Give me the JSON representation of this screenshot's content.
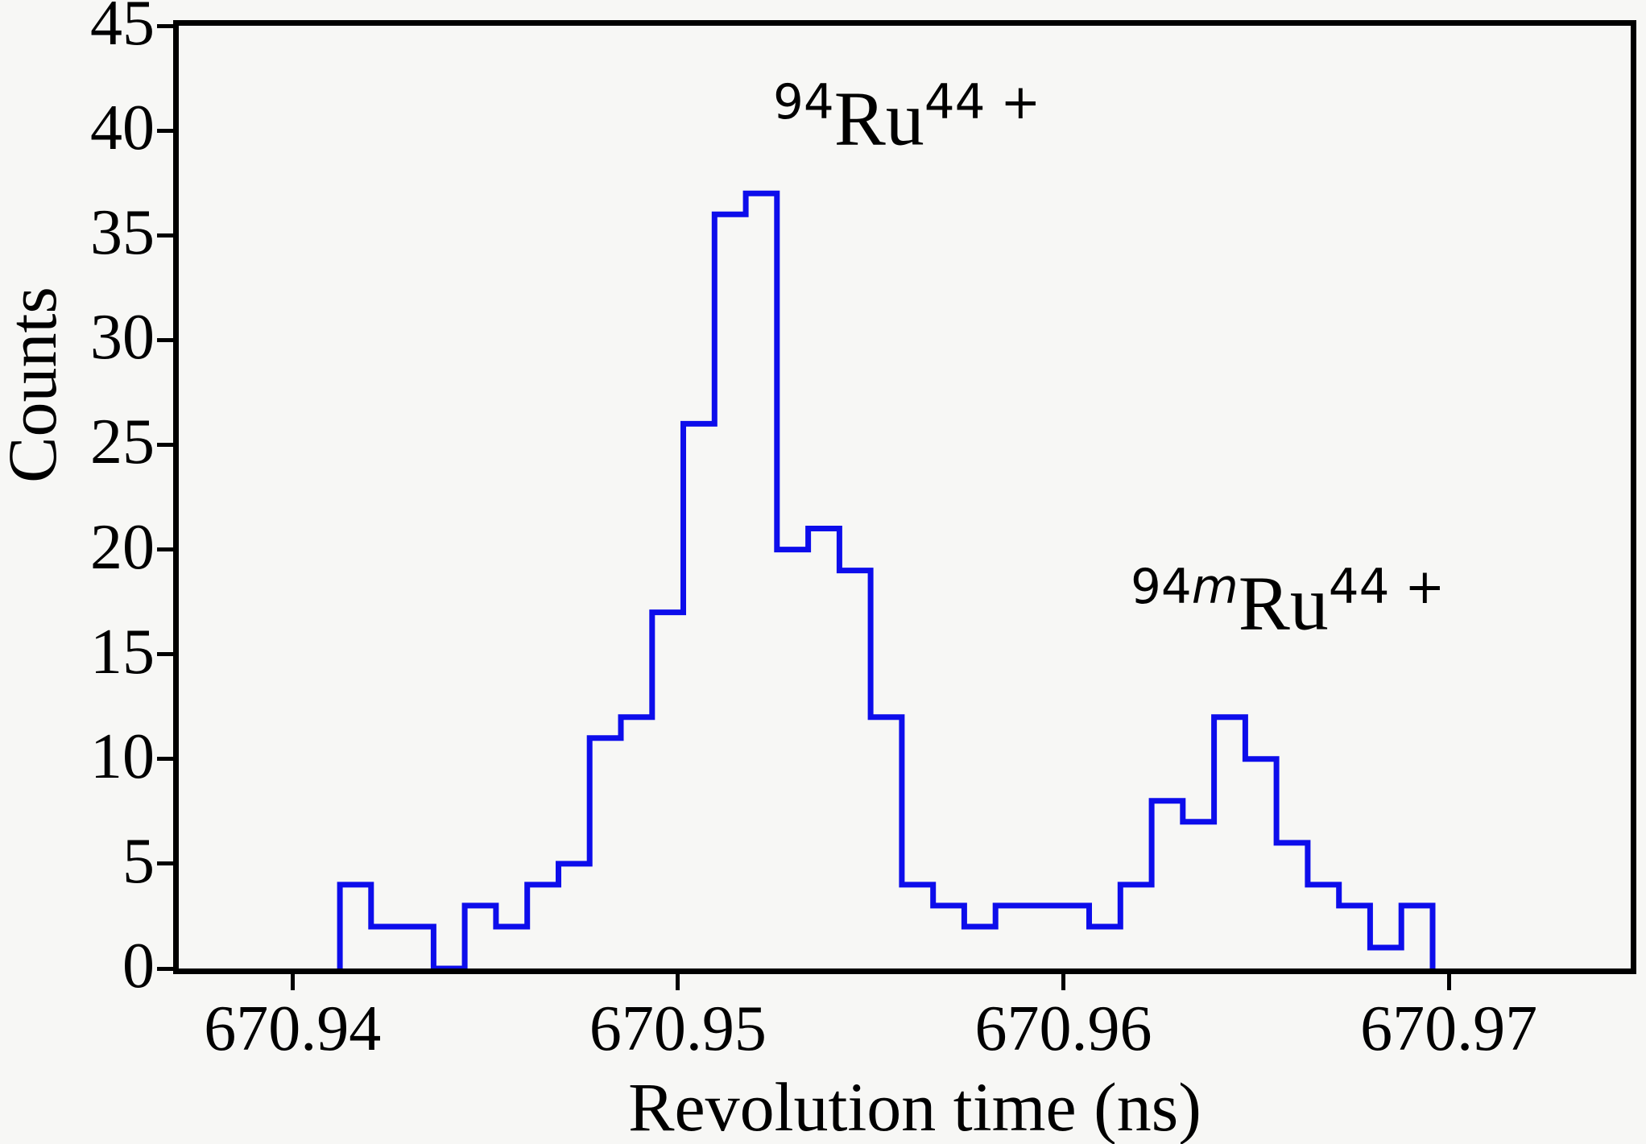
{
  "figure": {
    "background_color": "#f7f7f5",
    "axis_color": "#000000",
    "line_color": "#0d0deb"
  },
  "axes": {
    "x": {
      "label": "Revolution time (ns)",
      "tick_labels": [
        "670.94",
        "670.95",
        "670.96",
        "670.97"
      ],
      "tick_values": [
        670.94,
        670.95,
        670.96,
        670.97
      ],
      "range": [
        670.93705,
        670.97472
      ]
    },
    "y": {
      "label": "Counts",
      "tick_labels": [
        "0",
        "5",
        "10",
        "15",
        "20",
        "25",
        "30",
        "35",
        "40",
        "45"
      ],
      "tick_values": [
        0,
        5,
        10,
        15,
        20,
        25,
        30,
        35,
        40,
        45
      ],
      "range": [
        0,
        45
      ]
    }
  },
  "annotations": [
    {
      "mass": "94",
      "isomer": "",
      "element": "Ru",
      "charge": "44 +"
    },
    {
      "mass": "94",
      "isomer": "m",
      "element": "Ru",
      "charge": "44 +"
    }
  ],
  "chart_data": {
    "type": "line",
    "subtype": "step-histogram",
    "title": "",
    "xlabel": "Revolution time (ns)",
    "ylabel": "Counts",
    "xlim": [
      670.93705,
      670.97472
    ],
    "ylim": [
      0,
      45
    ],
    "grid": false,
    "legend": "none",
    "bin_start": 670.94123,
    "bin_width": 0.00081,
    "counts": [
      4,
      2,
      2,
      0,
      3,
      2,
      4,
      5,
      11,
      12,
      17,
      26,
      36,
      37,
      20,
      21,
      19,
      12,
      4,
      3,
      2,
      3,
      3,
      3,
      2,
      4,
      8,
      7,
      12,
      10,
      6,
      4,
      3,
      1,
      3
    ],
    "peak_annotations": [
      {
        "text": "94Ru44+",
        "peak_bin_count": 37,
        "near_time": 670.9518
      },
      {
        "text": "94mRu44+",
        "peak_bin_count": 12,
        "near_time": 670.9641
      }
    ]
  }
}
